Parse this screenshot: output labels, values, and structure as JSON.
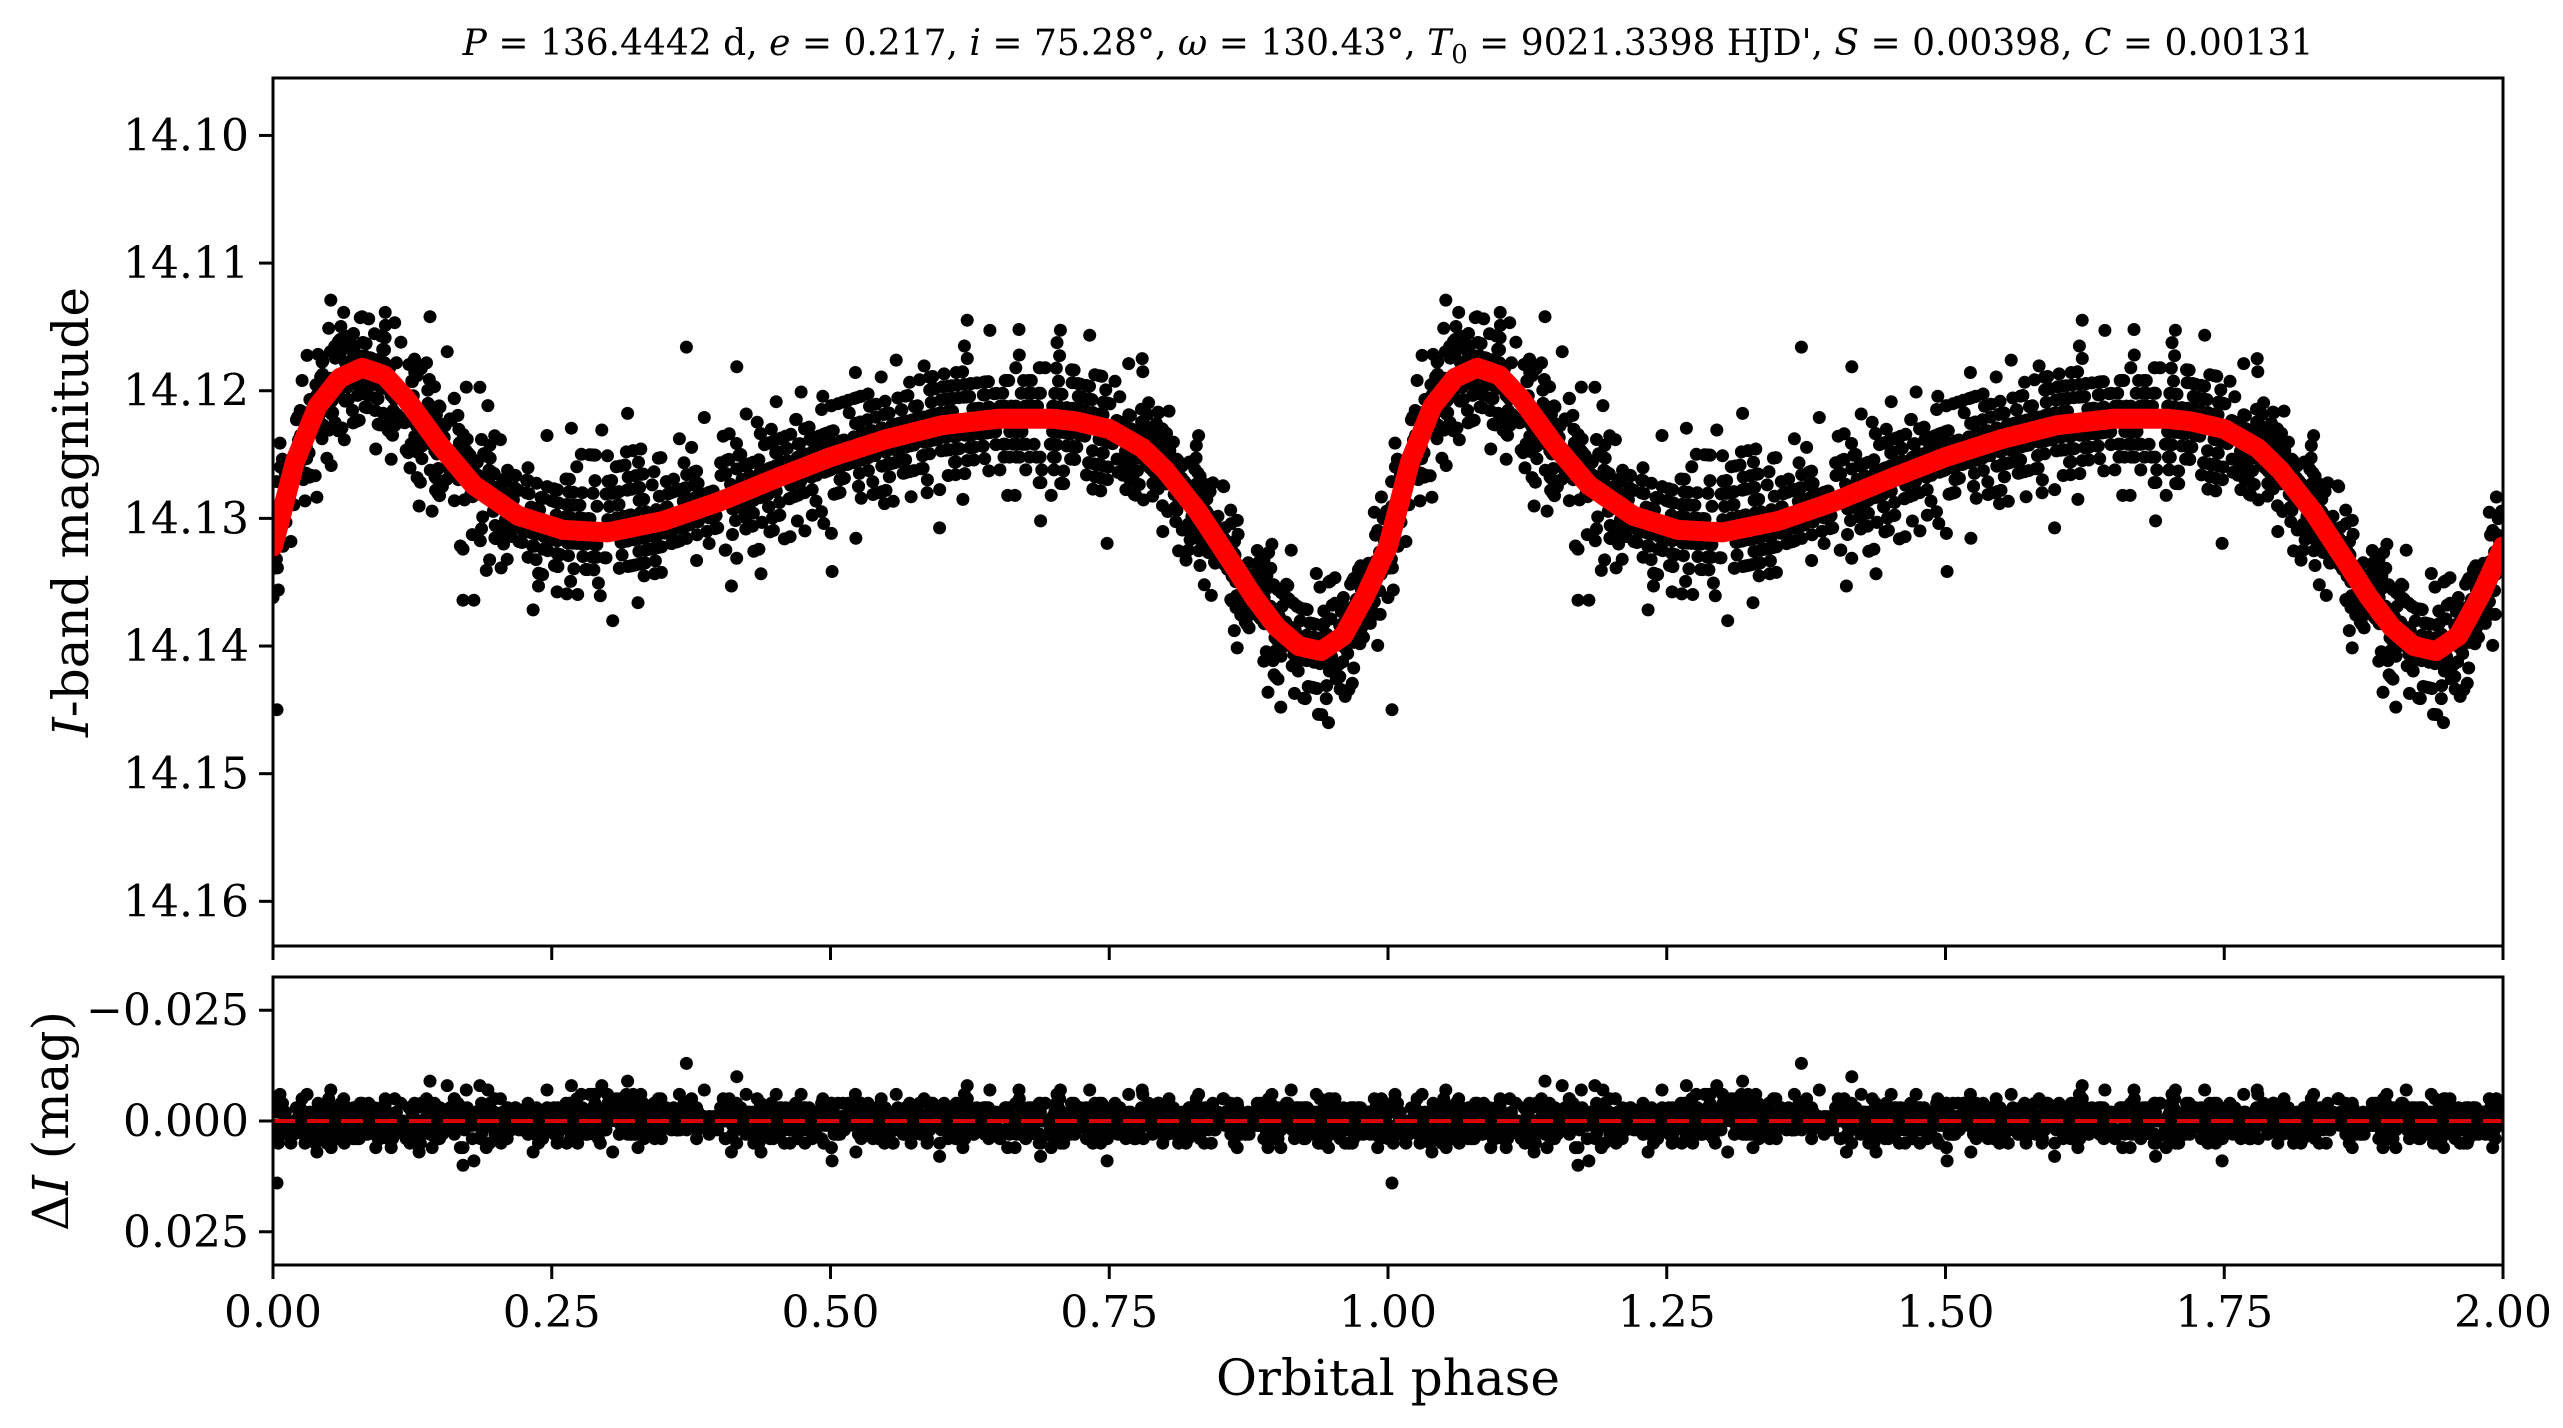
{
  "chart_data": [
    {
      "type": "scatter",
      "panel": "top",
      "title": "P = 136.4442 d, e = 0.217, i = 75.28°, ω = 130.43°, T0 = 9021.3398 HJD', S = 0.00398, C = 0.00131",
      "title_parts": {
        "P_sym": "P",
        "P_val": " = 136.4442 d, ",
        "e_sym": "e",
        "e_val": " = 0.217, ",
        "i_sym": "i",
        "i_val": " = 75.28°, ",
        "w_sym": "ω",
        "w_val": " = 130.43°, ",
        "T_sym": "T",
        "T_sub": "0",
        "T_val": " = 9021.3398 HJD', ",
        "S_sym": "S",
        "S_val": " = 0.00398, ",
        "C_sym": "C",
        "C_val": " = 0.00131"
      },
      "ylabel_italic": "I",
      "ylabel_rest": "-band magnitude",
      "xlim": [
        0.0,
        2.0
      ],
      "ylim": [
        14.1635,
        14.0955
      ],
      "y_inverted": true,
      "yticks": [
        14.1,
        14.11,
        14.12,
        14.13,
        14.14,
        14.15,
        14.16
      ],
      "ytick_labels": [
        "14.10",
        "14.11",
        "14.12",
        "14.13",
        "14.14",
        "14.15",
        "14.16"
      ],
      "xticks": [
        0.0,
        0.25,
        0.5,
        0.75,
        1.0,
        1.25,
        1.5,
        1.75,
        2.0
      ],
      "model_curve": {
        "color": "#ff0000",
        "phase": [
          0.0,
          0.02,
          0.04,
          0.06,
          0.08,
          0.1,
          0.12,
          0.15,
          0.18,
          0.22,
          0.26,
          0.3,
          0.35,
          0.4,
          0.45,
          0.5,
          0.55,
          0.6,
          0.65,
          0.7,
          0.72,
          0.75,
          0.78,
          0.8,
          0.83,
          0.86,
          0.88,
          0.9,
          0.92,
          0.94,
          0.96,
          0.98,
          1.0
        ],
        "magnitude": [
          14.1322,
          14.1255,
          14.1212,
          14.119,
          14.1182,
          14.1188,
          14.1207,
          14.1243,
          14.1274,
          14.1298,
          14.1309,
          14.1311,
          14.1302,
          14.1287,
          14.1269,
          14.1252,
          14.1238,
          14.1227,
          14.1222,
          14.1222,
          14.1224,
          14.123,
          14.1245,
          14.1262,
          14.1295,
          14.1335,
          14.1362,
          14.1385,
          14.14,
          14.1404,
          14.1392,
          14.136,
          14.1322
        ]
      },
      "observations": {
        "color": "#000000",
        "phase_range": [
          0.0,
          2.0
        ],
        "scatter_mag_sd": 0.0045,
        "extreme_faint": 14.154,
        "extreme_bright": 14.106
      }
    },
    {
      "type": "scatter",
      "panel": "bottom",
      "xlabel": "Orbital phase",
      "ylabel_delta": "Δ",
      "ylabel_italic": "I",
      "ylabel_rest": " (mag)",
      "xlim": [
        0.0,
        2.0
      ],
      "ylim": [
        0.0325,
        -0.0325
      ],
      "y_inverted": true,
      "yticks": [
        -0.025,
        0.0,
        0.025
      ],
      "ytick_labels": [
        "−0.025",
        "0.000",
        "0.025"
      ],
      "xticks": [
        0.0,
        0.25,
        0.5,
        0.75,
        1.0,
        1.25,
        1.5,
        1.75,
        2.0
      ],
      "xtick_labels": [
        "0.00",
        "0.25",
        "0.50",
        "0.75",
        "1.00",
        "1.25",
        "1.50",
        "1.75",
        "2.00"
      ],
      "zero_line": {
        "value": 0.0,
        "color": "#dd0000",
        "style": "dashed"
      },
      "residuals": {
        "color": "#000000",
        "sd": 0.0045,
        "extreme_min": -0.018,
        "extreme_max": 0.019
      }
    }
  ]
}
